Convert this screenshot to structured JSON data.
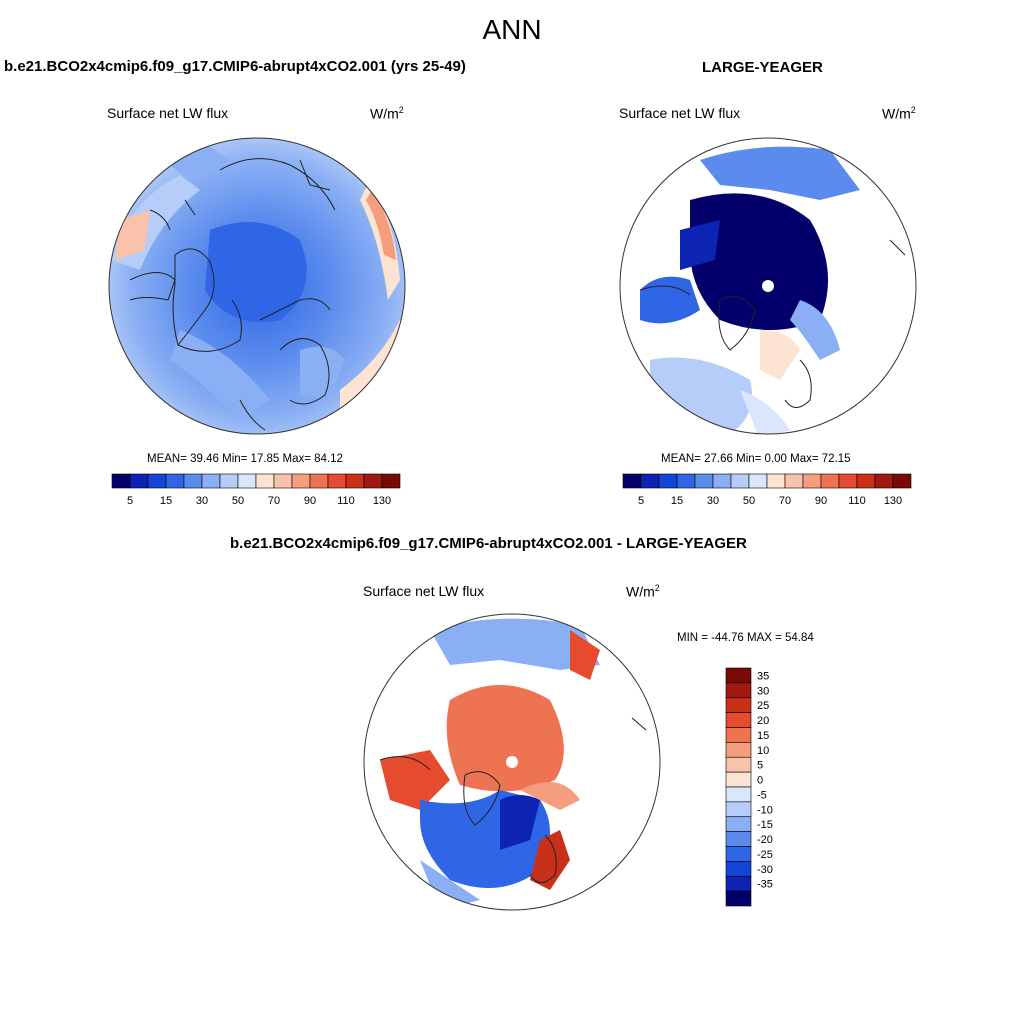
{
  "page": {
    "main_title": "ANN"
  },
  "panels": [
    {
      "case_title": "b.e21.BCO2x4cmip6.f09_g17.CMIP6-abrupt4xCO2.001 (yrs 25-49)",
      "variable": "Surface net LW flux",
      "units": "W/m",
      "units_sup": "2",
      "stats_text": "MEAN=  39.46  Min=  17.85  Max=  84.12"
    },
    {
      "case_title": "LARGE-YEAGER",
      "variable": "Surface net LW flux",
      "units": "W/m",
      "units_sup": "2",
      "stats_text": "MEAN=  27.66  Min=   0.00  Max=  72.15"
    },
    {
      "case_title": "b.e21.BCO2x4cmip6.f09_g17.CMIP6-abrupt4xCO2.001 - LARGE-YEAGER",
      "variable": "Surface net LW flux",
      "units": "W/m",
      "units_sup": "2",
      "stats_text": "MIN = -44.76 MAX =  54.84"
    }
  ],
  "chart_data": [
    {
      "type": "heatmap",
      "projection": "north-polar-stereographic",
      "title": "b.e21.BCO2x4cmip6.f09_g17.CMIP6-abrupt4xCO2.001 (yrs 25-49)",
      "variable": "Surface net LW flux",
      "units": "W/m2",
      "mean": 39.46,
      "min": 17.85,
      "max": 84.12,
      "colorbar_levels": [
        5,
        10,
        15,
        20,
        30,
        40,
        50,
        60,
        70,
        80,
        90,
        100,
        110,
        120,
        130
      ],
      "colorbar_labels": [
        "5",
        "15",
        "30",
        "50",
        "70",
        "90",
        "110",
        "130"
      ],
      "colorbar_colors": [
        "#04006b",
        "#0c23b4",
        "#1545d8",
        "#2f66e6",
        "#5b8ced",
        "#8aaff4",
        "#b5cdf8",
        "#dae6fb",
        "#fde3d2",
        "#f9c2aa",
        "#f49e7d",
        "#ee7352",
        "#e54b2c",
        "#c8301a",
        "#a21a0f",
        "#7a0a05"
      ]
    },
    {
      "type": "heatmap",
      "projection": "north-polar-stereographic",
      "title": "LARGE-YEAGER",
      "variable": "Surface net LW flux",
      "units": "W/m2",
      "mean": 27.66,
      "min": 0.0,
      "max": 72.15,
      "colorbar_levels": [
        5,
        10,
        15,
        20,
        30,
        40,
        50,
        60,
        70,
        80,
        90,
        100,
        110,
        120,
        130
      ],
      "colorbar_labels": [
        "5",
        "15",
        "30",
        "50",
        "70",
        "90",
        "110",
        "130"
      ],
      "colorbar_colors": [
        "#04006b",
        "#0c23b4",
        "#1545d8",
        "#2f66e6",
        "#5b8ced",
        "#8aaff4",
        "#b5cdf8",
        "#dae6fb",
        "#fde3d2",
        "#f9c2aa",
        "#f49e7d",
        "#ee7352",
        "#e54b2c",
        "#c8301a",
        "#a21a0f",
        "#7a0a05"
      ]
    },
    {
      "type": "heatmap",
      "projection": "north-polar-stereographic",
      "title": "b.e21.BCO2x4cmip6.f09_g17.CMIP6-abrupt4xCO2.001 - LARGE-YEAGER",
      "variable": "Surface net LW flux",
      "units": "W/m2",
      "min": -44.76,
      "max": 54.84,
      "colorbar_levels": [
        35,
        30,
        25,
        20,
        15,
        10,
        5,
        0,
        -5,
        -10,
        -15,
        -20,
        -25,
        -30,
        -35
      ],
      "colorbar_labels": [
        "35",
        "30",
        "25",
        "20",
        "15",
        "10",
        "5",
        "0",
        "-5",
        "-10",
        "-15",
        "-20",
        "-25",
        "-30",
        "-35"
      ],
      "colorbar_colors": [
        "#7a0a05",
        "#a21a0f",
        "#c8301a",
        "#e54b2c",
        "#ee7352",
        "#f49e7d",
        "#f9c2aa",
        "#fde3d2",
        "#dae6fb",
        "#b5cdf8",
        "#8aaff4",
        "#5b8ced",
        "#2f66e6",
        "#1545d8",
        "#0c23b4",
        "#04006b"
      ]
    }
  ]
}
